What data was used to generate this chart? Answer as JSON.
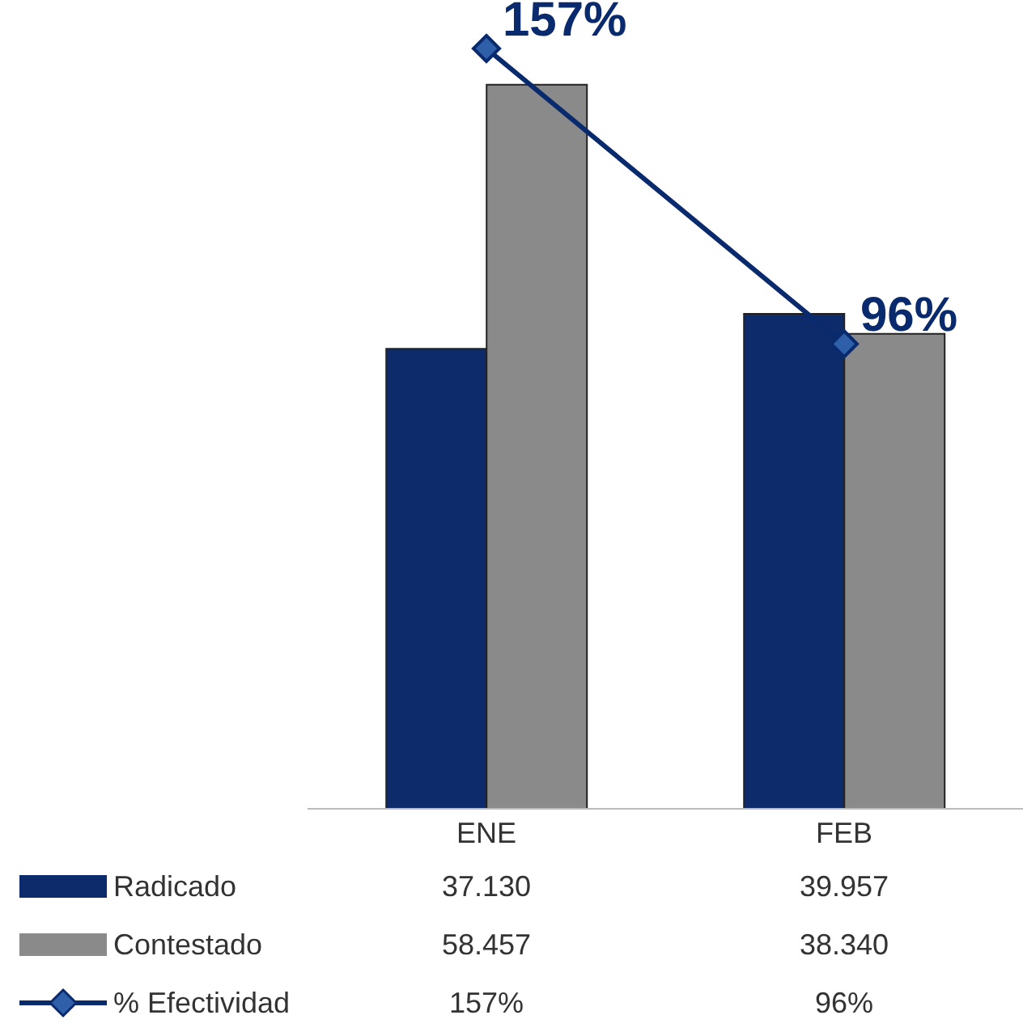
{
  "chart_data": {
    "type": "bar",
    "categories": [
      "ENE",
      "FEB"
    ],
    "series": [
      {
        "name": "Radicado",
        "color": "#0d2a6b",
        "values": [
          37130,
          39957
        ],
        "value_labels": [
          "37.130",
          "39.957"
        ]
      },
      {
        "name": "Contestado",
        "color": "#8a8a8a",
        "values": [
          58457,
          38340
        ],
        "value_labels": [
          "58.457",
          "38.340"
        ]
      },
      {
        "name": "% Efectividad",
        "type": "line",
        "axis": "y2",
        "color": "#0a2a6e",
        "values": [
          157,
          96
        ],
        "value_labels": [
          "157%",
          "96%"
        ]
      }
    ],
    "tick_labels": "x",
    "legend": "bottom",
    "marker": "diamond",
    "line_style": "solid"
  }
}
